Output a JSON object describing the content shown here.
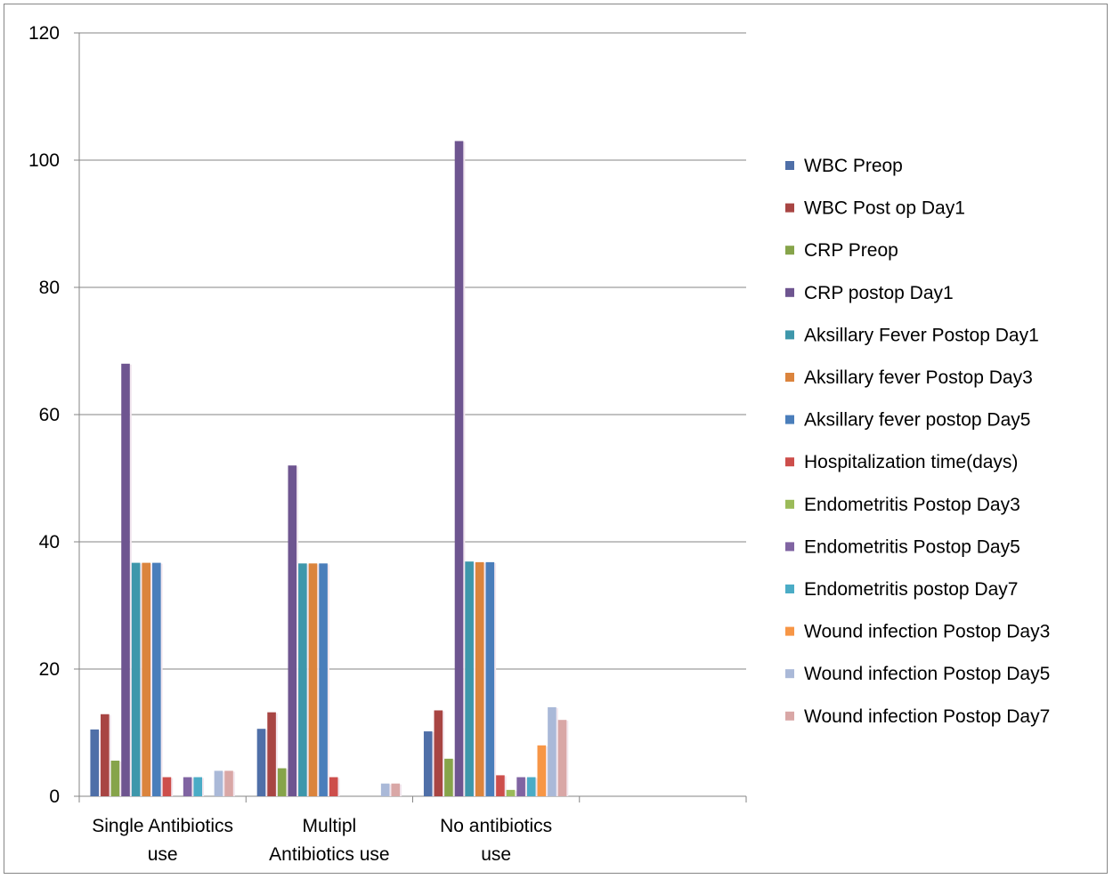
{
  "chart_data": {
    "type": "bar",
    "categories": [
      [
        "Single Antibiotics",
        "use"
      ],
      [
        "Multipl",
        "Antibiotics use"
      ],
      [
        "No antibiotics",
        "use"
      ],
      [
        "",
        ""
      ]
    ],
    "ylim": [
      0,
      120
    ],
    "yticks": [
      0,
      20,
      40,
      60,
      80,
      100,
      120
    ],
    "grid": true,
    "legend_position": "right",
    "series": [
      {
        "name": "WBC Preop",
        "color": "#4F6FA8",
        "values": [
          10.5,
          10.6,
          10.2,
          null
        ]
      },
      {
        "name": "WBC Post op Day1",
        "color": "#A84543",
        "values": [
          12.9,
          13.2,
          13.5,
          null
        ]
      },
      {
        "name": "CRP Preop",
        "color": "#86A44A",
        "values": [
          5.6,
          4.4,
          5.9,
          null
        ]
      },
      {
        "name": "CRP postop Day1",
        "color": "#6E5590",
        "values": [
          68,
          52,
          103,
          null
        ]
      },
      {
        "name": "Aksillary Fever Postop Day1",
        "color": "#3E97AB",
        "values": [
          36.7,
          36.6,
          36.9,
          null
        ]
      },
      {
        "name": "Aksillary fever Postop Day3",
        "color": "#DB843D",
        "values": [
          36.7,
          36.6,
          36.8,
          null
        ]
      },
      {
        "name": "Aksillary fever postop Day5",
        "color": "#4A7EBB",
        "values": [
          36.7,
          36.6,
          36.8,
          null
        ]
      },
      {
        "name": "Hospitalization time(days)",
        "color": "#CD4E4B",
        "values": [
          3,
          3,
          3.3,
          null
        ]
      },
      {
        "name": "Endometritis Postop Day3",
        "color": "#9BBB59",
        "values": [
          0,
          0,
          1,
          null
        ]
      },
      {
        "name": "Endometritis Postop Day5",
        "color": "#8064A2",
        "values": [
          3,
          0,
          3,
          null
        ]
      },
      {
        "name": "Endometritis postop Day7",
        "color": "#4BACC6",
        "values": [
          3,
          0,
          3,
          null
        ]
      },
      {
        "name": "Wound infection Postop Day3",
        "color": "#F79646",
        "values": [
          0,
          0,
          8,
          null
        ]
      },
      {
        "name": "Wound infection Postop Day5",
        "color": "#AAB9D8",
        "values": [
          4,
          2,
          14,
          null
        ]
      },
      {
        "name": "Wound infection Postop Day7",
        "color": "#D9A7A6",
        "values": [
          4,
          2,
          12,
          null
        ]
      }
    ]
  }
}
